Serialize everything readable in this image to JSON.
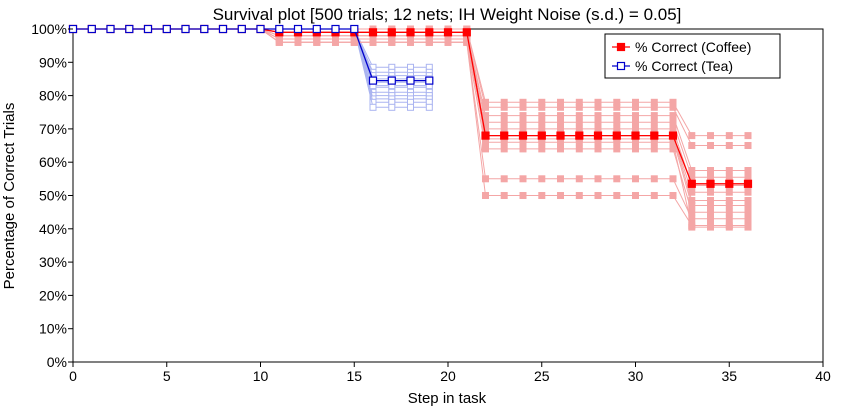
{
  "chart_data": {
    "type": "line",
    "title": "Survival plot [500 trials; 12 nets; IH Weight Noise (s.d.) = 0.05]",
    "xlabel": "Step in task",
    "ylabel": "Percentage of Correct Trials",
    "xlim": [
      0,
      40
    ],
    "ylim": [
      0,
      100
    ],
    "xticks": [
      0,
      5,
      10,
      15,
      20,
      25,
      30,
      35,
      40
    ],
    "xtick_labels": [
      "0",
      "5",
      "10",
      "15",
      "20",
      "25",
      "30",
      "35",
      "40"
    ],
    "yticks": [
      0,
      10,
      20,
      30,
      40,
      50,
      60,
      70,
      80,
      90,
      100
    ],
    "ytick_labels": [
      "0%",
      "10%",
      "20%",
      "30%",
      "40%",
      "50%",
      "60%",
      "70%",
      "80%",
      "90%",
      "100%"
    ],
    "grid": false,
    "legend_position": "top-right",
    "series": [
      {
        "name": "% Correct (Coffee)",
        "color": "#ff0000",
        "marker": "square-filled",
        "x": [
          0,
          1,
          2,
          3,
          4,
          5,
          6,
          7,
          8,
          9,
          10,
          11,
          12,
          13,
          14,
          15,
          16,
          17,
          18,
          19,
          20,
          21,
          22,
          23,
          24,
          25,
          26,
          27,
          28,
          29,
          30,
          31,
          32,
          33,
          34,
          35,
          36
        ],
        "y": [
          100,
          100,
          100,
          100,
          100,
          100,
          100,
          100,
          100,
          100,
          100,
          99,
          99,
          99,
          99,
          99,
          99,
          99,
          99,
          99,
          99,
          99,
          68,
          68,
          68,
          68,
          68,
          68,
          68,
          68,
          68,
          68,
          68,
          53.5,
          53.5,
          53.5,
          53.5
        ]
      },
      {
        "name": "% Correct (Tea)",
        "color": "#0000cc",
        "marker": "square-open",
        "x": [
          0,
          1,
          2,
          3,
          4,
          5,
          6,
          7,
          8,
          9,
          10,
          11,
          12,
          13,
          14,
          15,
          16,
          17,
          18,
          19
        ],
        "y": [
          100,
          100,
          100,
          100,
          100,
          100,
          100,
          100,
          100,
          100,
          100,
          100,
          100,
          100,
          100,
          100,
          84.5,
          84.5,
          84.5,
          84.5
        ]
      }
    ],
    "coffee_individual_nets": {
      "color": "#f4a6a6",
      "x": [
        0,
        1,
        2,
        3,
        4,
        5,
        6,
        7,
        8,
        9,
        10,
        11,
        12,
        13,
        14,
        15,
        16,
        17,
        18,
        19,
        20,
        21,
        22,
        23,
        24,
        25,
        26,
        27,
        28,
        29,
        30,
        31,
        32,
        33,
        34,
        35,
        36
      ],
      "nets": [
        [
          100,
          100,
          100,
          100,
          100,
          100,
          100,
          100,
          100,
          100,
          100,
          100,
          100,
          100,
          100,
          100,
          100,
          100,
          100,
          100,
          100,
          100,
          78,
          78,
          78,
          78,
          78,
          78,
          78,
          78,
          78,
          78,
          78,
          68,
          68,
          68,
          68
        ],
        [
          100,
          100,
          100,
          100,
          100,
          100,
          100,
          100,
          100,
          100,
          100,
          100,
          100,
          100,
          100,
          100,
          100,
          100,
          100,
          100,
          100,
          100,
          76.5,
          76.5,
          76.5,
          76.5,
          76.5,
          76.5,
          76.5,
          76.5,
          76.5,
          76.5,
          76.5,
          65,
          65,
          65,
          65
        ],
        [
          100,
          100,
          100,
          100,
          100,
          100,
          100,
          100,
          100,
          100,
          100,
          99,
          99,
          99,
          99,
          99,
          99,
          99,
          99,
          99,
          99,
          99,
          74,
          74,
          74,
          74,
          74,
          74,
          74,
          74,
          74,
          74,
          74,
          57.5,
          57.5,
          57.5,
          57.5
        ],
        [
          100,
          100,
          100,
          100,
          100,
          100,
          100,
          100,
          100,
          100,
          100,
          99,
          99,
          99,
          99,
          99,
          99,
          99,
          99,
          99,
          99,
          99,
          72,
          72,
          72,
          72,
          72,
          72,
          72,
          72,
          72,
          72,
          72,
          55.5,
          55.5,
          55.5,
          55.5
        ],
        [
          100,
          100,
          100,
          100,
          100,
          100,
          100,
          100,
          100,
          100,
          100,
          98,
          98,
          98,
          98,
          98,
          98,
          98,
          98,
          98,
          98,
          98,
          70,
          70,
          70,
          70,
          70,
          70,
          70,
          70,
          70,
          70,
          70,
          53,
          53,
          53,
          53
        ],
        [
          100,
          100,
          100,
          100,
          100,
          100,
          100,
          100,
          100,
          100,
          100,
          98,
          98,
          98,
          98,
          98,
          98,
          98,
          98,
          98,
          98,
          98,
          68,
          68,
          68,
          68,
          68,
          68,
          68,
          68,
          68,
          68,
          68,
          51,
          51,
          51,
          51
        ],
        [
          100,
          100,
          100,
          100,
          100,
          100,
          100,
          100,
          100,
          100,
          100,
          97,
          97,
          97,
          97,
          97,
          97,
          97,
          97,
          97,
          97,
          97,
          68,
          68,
          68,
          68,
          68,
          68,
          68,
          68,
          68,
          68,
          68,
          48.5,
          48.5,
          48.5,
          48.5
        ],
        [
          100,
          100,
          100,
          100,
          100,
          100,
          100,
          100,
          100,
          100,
          100,
          97,
          97,
          97,
          97,
          97,
          97,
          97,
          97,
          97,
          97,
          97,
          67,
          67,
          67,
          67,
          67,
          67,
          67,
          67,
          67,
          67,
          67,
          47,
          47,
          47,
          47
        ],
        [
          100,
          100,
          100,
          100,
          100,
          100,
          100,
          100,
          100,
          100,
          100,
          96,
          96,
          96,
          96,
          96,
          96,
          96,
          96,
          96,
          96,
          96,
          64,
          64,
          64,
          64,
          64,
          64,
          64,
          64,
          64,
          64,
          64,
          45,
          45,
          45,
          45
        ],
        [
          100,
          100,
          100,
          100,
          100,
          100,
          100,
          100,
          100,
          100,
          100,
          96,
          96,
          96,
          96,
          96,
          96,
          96,
          96,
          96,
          96,
          96,
          55,
          55,
          55,
          55,
          55,
          55,
          55,
          55,
          55,
          55,
          55,
          43,
          43,
          43,
          43
        ],
        [
          100,
          100,
          100,
          100,
          100,
          100,
          100,
          100,
          100,
          100,
          100,
          96,
          96,
          96,
          96,
          96,
          96,
          96,
          96,
          96,
          96,
          96,
          50,
          50,
          50,
          50,
          50,
          50,
          50,
          50,
          50,
          50,
          50,
          41,
          41,
          41,
          41
        ],
        [
          100,
          100,
          100,
          100,
          100,
          100,
          100,
          100,
          100,
          100,
          100,
          99,
          99,
          99,
          99,
          99,
          99,
          99,
          99,
          99,
          99,
          99,
          66,
          66,
          66,
          66,
          66,
          66,
          66,
          66,
          66,
          66,
          66,
          40.5,
          40.5,
          40.5,
          40.5
        ]
      ]
    },
    "tea_individual_nets": {
      "color": "#aab4f0",
      "x": [
        0,
        1,
        2,
        3,
        4,
        5,
        6,
        7,
        8,
        9,
        10,
        11,
        12,
        13,
        14,
        15,
        16,
        17,
        18,
        19
      ],
      "nets": [
        [
          100,
          100,
          100,
          100,
          100,
          100,
          100,
          100,
          100,
          100,
          100,
          100,
          100,
          100,
          100,
          100,
          88.5,
          88.5,
          88.5,
          88.5
        ],
        [
          100,
          100,
          100,
          100,
          100,
          100,
          100,
          100,
          100,
          100,
          100,
          100,
          100,
          100,
          100,
          100,
          87,
          87,
          87,
          87
        ],
        [
          100,
          100,
          100,
          100,
          100,
          100,
          100,
          100,
          100,
          100,
          100,
          100,
          100,
          100,
          100,
          100,
          86,
          86,
          86,
          86
        ],
        [
          100,
          100,
          100,
          100,
          100,
          100,
          100,
          100,
          100,
          100,
          100,
          100,
          100,
          100,
          100,
          100,
          85,
          85,
          85,
          85
        ],
        [
          100,
          100,
          100,
          100,
          100,
          100,
          100,
          100,
          100,
          100,
          100,
          100,
          100,
          100,
          100,
          100,
          84,
          84,
          84,
          84
        ],
        [
          100,
          100,
          100,
          100,
          100,
          100,
          100,
          100,
          100,
          100,
          100,
          100,
          100,
          100,
          100,
          100,
          82.5,
          82.5,
          82.5,
          82.5
        ],
        [
          100,
          100,
          100,
          100,
          100,
          100,
          100,
          100,
          100,
          100,
          100,
          100,
          100,
          100,
          100,
          100,
          81,
          81,
          81,
          81
        ],
        [
          100,
          100,
          100,
          100,
          100,
          100,
          100,
          100,
          100,
          100,
          100,
          100,
          100,
          100,
          100,
          100,
          80,
          80,
          80,
          80
        ],
        [
          100,
          100,
          100,
          100,
          100,
          100,
          100,
          100,
          100,
          100,
          100,
          100,
          100,
          100,
          100,
          100,
          79,
          79,
          79,
          79
        ],
        [
          100,
          100,
          100,
          100,
          100,
          100,
          100,
          100,
          100,
          100,
          100,
          100,
          100,
          100,
          100,
          100,
          78,
          78,
          78,
          78
        ],
        [
          100,
          100,
          100,
          100,
          100,
          100,
          100,
          100,
          100,
          100,
          100,
          100,
          100,
          100,
          100,
          100,
          76.5,
          76.5,
          76.5,
          76.5
        ],
        [
          100,
          100,
          100,
          100,
          100,
          100,
          100,
          100,
          100,
          100,
          100,
          100,
          100,
          100,
          100,
          100,
          83,
          83,
          83,
          83
        ]
      ]
    }
  }
}
